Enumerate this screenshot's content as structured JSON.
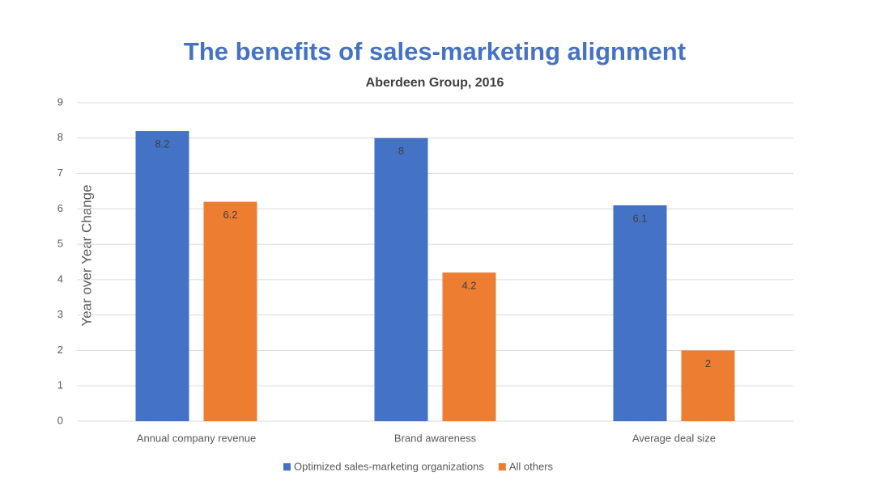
{
  "chart_data": {
    "type": "bar",
    "title": "The benefits of sales-marketing alignment",
    "subtitle": "Aberdeen Group, 2016",
    "y_label": "Year over Year Change",
    "categories": [
      "Annual company revenue",
      "Brand awareness",
      "Average deal size"
    ],
    "series": [
      {
        "name": "Optimized sales-marketing organizations",
        "color": "#4472c4",
        "values": [
          8.2,
          8,
          6.1
        ]
      },
      {
        "name": "All others",
        "color": "#ed7d31",
        "values": [
          6.2,
          4.2,
          2
        ]
      }
    ],
    "ylim": [
      0,
      9
    ],
    "yticks": [
      0,
      1,
      2,
      3,
      4,
      5,
      6,
      7,
      8,
      9
    ],
    "grid": true,
    "legend": "bottom"
  }
}
